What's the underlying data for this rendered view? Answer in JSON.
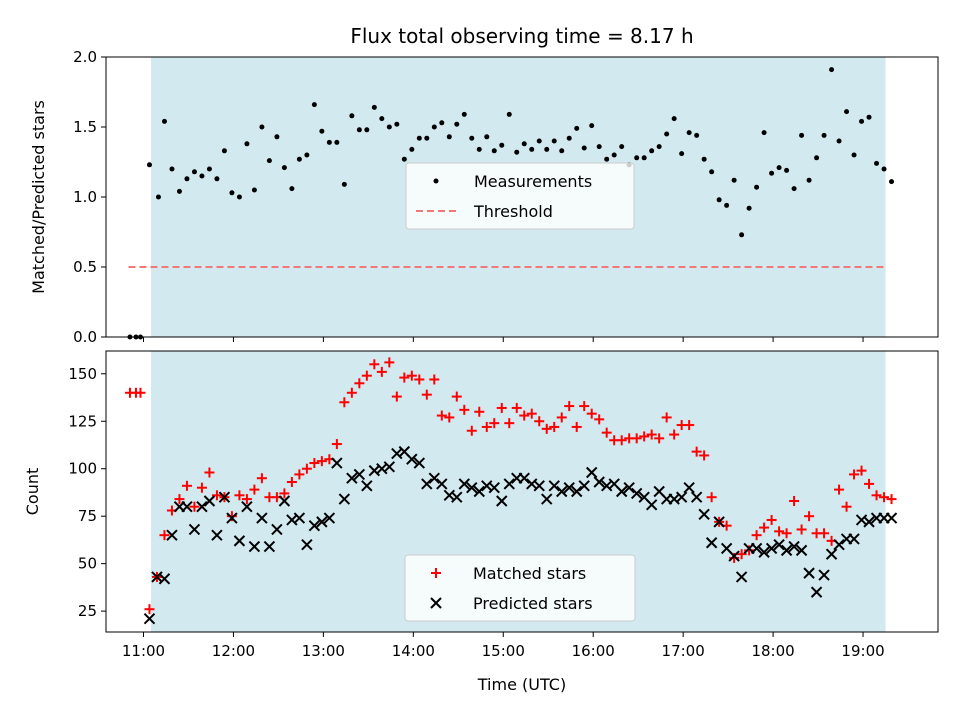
{
  "chart_data": [
    {
      "type": "scatter",
      "title": "Flux total observing time = 8.17 h",
      "xlabel": "",
      "ylabel": "Matched/Predicted stars",
      "ylim": [
        0,
        2.0
      ],
      "y_ticks": [
        "0.0",
        "0.5",
        "1.0",
        "1.5",
        "2.0"
      ],
      "x_ticks": [
        "11:00",
        "12:00",
        "13:00",
        "14:00",
        "15:00",
        "16:00",
        "17:00",
        "18:00",
        "19:00"
      ],
      "observing_window": [
        "11:05",
        "19:15"
      ],
      "shade_color": "#d2e9f0",
      "threshold": {
        "name": "Threshold",
        "value": 0.5,
        "x_start": "10:50",
        "x_end": "19:15",
        "color": "#f07878"
      },
      "series": [
        {
          "name": "Measurements",
          "marker": "dot",
          "color": "#000000",
          "x": [
            "10:51",
            "10:55",
            "10:58",
            "11:04",
            "11:10",
            "11:14",
            "11:19",
            "11:24",
            "11:29",
            "11:34",
            "11:39",
            "11:44",
            "11:49",
            "11:54",
            "11:59",
            "12:04",
            "12:09",
            "12:14",
            "12:19",
            "12:24",
            "12:29",
            "12:34",
            "12:39",
            "12:44",
            "12:49",
            "12:54",
            "12:59",
            "13:04",
            "13:09",
            "13:14",
            "13:19",
            "13:24",
            "13:29",
            "13:34",
            "13:39",
            "13:44",
            "13:49",
            "13:54",
            "13:59",
            "14:04",
            "14:09",
            "14:14",
            "14:19",
            "14:24",
            "14:29",
            "14:34",
            "14:39",
            "14:44",
            "14:49",
            "14:54",
            "14:59",
            "15:04",
            "15:09",
            "15:14",
            "15:19",
            "15:24",
            "15:29",
            "15:34",
            "15:39",
            "15:44",
            "15:49",
            "15:54",
            "15:59",
            "16:04",
            "16:09",
            "16:14",
            "16:19",
            "16:24",
            "16:29",
            "16:34",
            "16:39",
            "16:44",
            "16:49",
            "16:54",
            "16:59",
            "17:04",
            "17:09",
            "17:14",
            "17:19",
            "17:24",
            "17:29",
            "17:34",
            "17:39",
            "17:44",
            "17:49",
            "17:54",
            "17:59",
            "18:04",
            "18:09",
            "18:14",
            "18:19",
            "18:24",
            "18:29",
            "18:34",
            "18:39",
            "18:44",
            "18:49",
            "18:54",
            "18:59",
            "19:04",
            "19:09",
            "19:14",
            "19:19"
          ],
          "y": [
            0.0,
            0.0,
            0.0,
            1.23,
            1.0,
            1.54,
            1.2,
            1.04,
            1.13,
            1.18,
            1.15,
            1.2,
            1.13,
            1.33,
            1.03,
            1.0,
            1.38,
            1.05,
            1.5,
            1.26,
            1.43,
            1.21,
            1.06,
            1.27,
            1.3,
            1.66,
            1.47,
            1.39,
            1.39,
            1.09,
            1.58,
            1.48,
            1.48,
            1.64,
            1.56,
            1.5,
            1.52,
            1.27,
            1.34,
            1.42,
            1.42,
            1.5,
            1.53,
            1.43,
            1.52,
            1.59,
            1.42,
            1.34,
            1.43,
            1.33,
            1.37,
            1.59,
            1.32,
            1.38,
            1.34,
            1.4,
            1.34,
            1.4,
            1.33,
            1.42,
            1.49,
            1.35,
            1.51,
            1.36,
            1.27,
            1.3,
            1.36,
            1.23,
            1.28,
            1.28,
            1.33,
            1.36,
            1.45,
            1.56,
            1.31,
            1.46,
            1.44,
            1.27,
            1.18,
            0.98,
            0.94,
            1.12,
            0.73,
            0.92,
            1.07,
            1.46,
            1.17,
            1.21,
            1.19,
            1.06,
            1.44,
            1.12,
            1.28,
            1.44,
            1.91,
            1.4,
            1.61,
            1.3,
            1.54,
            1.57,
            1.24,
            1.2,
            1.11
          ]
        }
      ]
    },
    {
      "type": "scatter",
      "title": "",
      "xlabel": "Time (UTC)",
      "ylabel": "Count",
      "ylim": [
        14,
        162
      ],
      "y_ticks": [
        "25",
        "50",
        "75",
        "100",
        "125",
        "150"
      ],
      "x_ticks": [
        "11:00",
        "12:00",
        "13:00",
        "14:00",
        "15:00",
        "16:00",
        "17:00",
        "18:00",
        "19:00"
      ],
      "observing_window": [
        "11:05",
        "19:15"
      ],
      "shade_color": "#d2e9f0",
      "series": [
        {
          "name": "Matched stars",
          "marker": "plus",
          "color": "#ff0000",
          "x": [
            "10:51",
            "10:55",
            "10:58",
            "11:04",
            "11:09",
            "11:14",
            "11:19",
            "11:24",
            "11:29",
            "11:34",
            "11:39",
            "11:44",
            "11:49",
            "11:54",
            "11:59",
            "12:04",
            "12:09",
            "12:14",
            "12:19",
            "12:24",
            "12:29",
            "12:34",
            "12:39",
            "12:44",
            "12:49",
            "12:54",
            "12:59",
            "13:04",
            "13:09",
            "13:14",
            "13:19",
            "13:24",
            "13:29",
            "13:34",
            "13:39",
            "13:44",
            "13:49",
            "13:54",
            "13:59",
            "14:04",
            "14:09",
            "14:14",
            "14:19",
            "14:24",
            "14:29",
            "14:34",
            "14:39",
            "14:44",
            "14:49",
            "14:54",
            "14:59",
            "15:04",
            "15:09",
            "15:14",
            "15:19",
            "15:24",
            "15:29",
            "15:34",
            "15:39",
            "15:44",
            "15:49",
            "15:54",
            "15:59",
            "16:04",
            "16:09",
            "16:14",
            "16:19",
            "16:24",
            "16:29",
            "16:34",
            "16:39",
            "16:44",
            "16:49",
            "16:54",
            "16:59",
            "17:04",
            "17:09",
            "17:14",
            "17:19",
            "17:24",
            "17:29",
            "17:34",
            "17:39",
            "17:44",
            "17:49",
            "17:54",
            "17:59",
            "18:04",
            "18:09",
            "18:14",
            "18:19",
            "18:24",
            "18:29",
            "18:34",
            "18:39",
            "18:44",
            "18:49",
            "18:54",
            "18:59",
            "19:04",
            "19:09",
            "19:14",
            "19:19"
          ],
          "y": [
            140,
            140,
            140,
            26,
            43,
            65,
            78,
            84,
            91,
            80,
            90,
            98,
            86,
            85,
            75,
            86,
            84,
            89,
            95,
            85,
            85,
            87,
            93,
            97,
            100,
            103,
            104,
            105,
            113,
            135,
            140,
            145,
            149,
            155,
            151,
            156,
            138,
            148,
            149,
            147,
            139,
            147,
            128,
            127,
            138,
            131,
            120,
            130,
            122,
            124,
            132,
            124,
            132,
            128,
            129,
            125,
            121,
            122,
            127,
            133,
            122,
            133,
            129,
            126,
            119,
            115,
            115,
            116,
            116,
            117,
            118,
            116,
            127,
            118,
            123,
            123,
            109,
            107,
            85,
            72,
            70,
            53,
            55,
            57,
            65,
            69,
            73,
            67,
            66,
            83,
            68,
            75,
            66,
            66,
            62,
            89,
            80,
            97,
            99,
            92,
            86,
            85,
            84
          ]
        },
        {
          "name": "Predicted stars",
          "marker": "x",
          "color": "#000000",
          "x": [
            "11:04",
            "11:09",
            "11:14",
            "11:19",
            "11:24",
            "11:29",
            "11:34",
            "11:39",
            "11:44",
            "11:49",
            "11:54",
            "11:59",
            "12:04",
            "12:09",
            "12:14",
            "12:19",
            "12:24",
            "12:29",
            "12:34",
            "12:39",
            "12:44",
            "12:49",
            "12:54",
            "12:59",
            "13:04",
            "13:09",
            "13:14",
            "13:19",
            "13:24",
            "13:29",
            "13:34",
            "13:39",
            "13:44",
            "13:49",
            "13:54",
            "13:59",
            "14:04",
            "14:09",
            "14:14",
            "14:19",
            "14:24",
            "14:29",
            "14:34",
            "14:39",
            "14:44",
            "14:49",
            "14:54",
            "14:59",
            "15:04",
            "15:09",
            "15:14",
            "15:19",
            "15:24",
            "15:29",
            "15:34",
            "15:39",
            "15:44",
            "15:49",
            "15:54",
            "15:59",
            "16:04",
            "16:09",
            "16:14",
            "16:19",
            "16:24",
            "16:29",
            "16:34",
            "16:39",
            "16:44",
            "16:49",
            "16:54",
            "16:59",
            "17:04",
            "17:09",
            "17:14",
            "17:19",
            "17:24",
            "17:29",
            "17:34",
            "17:39",
            "17:44",
            "17:49",
            "17:54",
            "17:59",
            "18:04",
            "18:09",
            "18:14",
            "18:19",
            "18:24",
            "18:29",
            "18:34",
            "18:39",
            "18:44",
            "18:49",
            "18:54",
            "18:59",
            "19:04",
            "19:09",
            "19:14",
            "19:19"
          ],
          "y": [
            21,
            43,
            42,
            65,
            80,
            80,
            68,
            80,
            83,
            65,
            85,
            74,
            62,
            80,
            59,
            74,
            59,
            68,
            83,
            73,
            74,
            60,
            70,
            72,
            74,
            103,
            84,
            95,
            97,
            91,
            99,
            100,
            101,
            108,
            109,
            105,
            103,
            92,
            95,
            92,
            86,
            85,
            92,
            90,
            88,
            91,
            90,
            83,
            92,
            95,
            95,
            92,
            91,
            84,
            91,
            88,
            90,
            88,
            91,
            98,
            93,
            91,
            92,
            88,
            90,
            87,
            85,
            81,
            88,
            84,
            84,
            85,
            90,
            85,
            76,
            61,
            72,
            58,
            54,
            43,
            58,
            58,
            56,
            58,
            60,
            57,
            59,
            57,
            45,
            35,
            44,
            55,
            60,
            63,
            63,
            73,
            72,
            74,
            74,
            74
          ]
        }
      ]
    }
  ]
}
